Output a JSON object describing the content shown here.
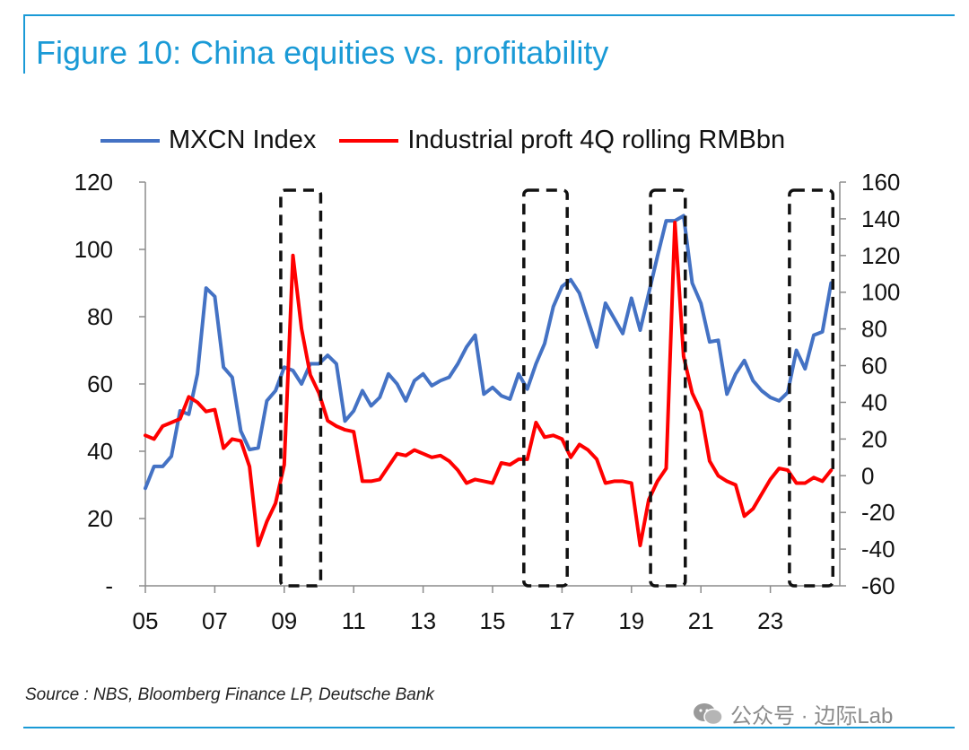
{
  "header": {
    "title": "Figure 10: China equities vs. profitability"
  },
  "legend": [
    {
      "label": "MXCN Index",
      "color": "#4472c4"
    },
    {
      "label": "Industrial proft 4Q rolling RMBbn",
      "color": "#ff0000"
    }
  ],
  "footer": {
    "source": "Source : NBS, Bloomberg Finance LP, Deutsche Bank"
  },
  "watermark": {
    "text": "公众号 · 边际Lab",
    "icon": "wechat-icon"
  },
  "chart_data": {
    "type": "line",
    "title": "Figure 10: China equities vs. profitability",
    "xlabel": "",
    "ylabel_left": "",
    "ylabel_right": "",
    "xlim": [
      2005,
      2025
    ],
    "x_ticks": [
      2005,
      2007,
      2009,
      2011,
      2013,
      2015,
      2017,
      2019,
      2021,
      2023
    ],
    "x_tick_labels": [
      "05",
      "07",
      "09",
      "11",
      "13",
      "15",
      "17",
      "19",
      "21",
      "23"
    ],
    "ylim_left": [
      0,
      120
    ],
    "y_left_ticks": [
      0,
      20,
      40,
      60,
      80,
      100,
      120
    ],
    "y_left_tick_labels": [
      "-",
      "20",
      "40",
      "60",
      "80",
      "100",
      "120"
    ],
    "ylim_right": [
      -60,
      160
    ],
    "y_right_ticks": [
      -60,
      -40,
      -20,
      0,
      20,
      40,
      60,
      80,
      100,
      120,
      140,
      160
    ],
    "y_right_tick_labels": [
      "-60",
      "-40",
      "-20",
      "0",
      "20",
      "40",
      "60",
      "80",
      "100",
      "120",
      "140",
      "160"
    ],
    "grid": false,
    "legend_position": "top",
    "series": [
      {
        "name": "MXCN Index",
        "axis": "left",
        "color": "#4472c4",
        "points": [
          [
            2005.0,
            29
          ],
          [
            2005.25,
            35.5
          ],
          [
            2005.5,
            35.5
          ],
          [
            2005.75,
            38.5
          ],
          [
            2006.0,
            52
          ],
          [
            2006.25,
            51
          ],
          [
            2006.5,
            63
          ],
          [
            2006.75,
            88.5
          ],
          [
            2007.0,
            86
          ],
          [
            2007.25,
            65
          ],
          [
            2007.5,
            62
          ],
          [
            2007.75,
            46
          ],
          [
            2008.0,
            40.5
          ],
          [
            2008.25,
            41
          ],
          [
            2008.5,
            55
          ],
          [
            2008.75,
            58
          ],
          [
            2009.0,
            65
          ],
          [
            2009.25,
            64
          ],
          [
            2009.5,
            60
          ],
          [
            2009.75,
            66
          ],
          [
            2010.0,
            66
          ],
          [
            2010.25,
            68.5
          ],
          [
            2010.5,
            66
          ],
          [
            2010.75,
            49
          ],
          [
            2011.0,
            52
          ],
          [
            2011.25,
            58
          ],
          [
            2011.5,
            53.5
          ],
          [
            2011.75,
            56
          ],
          [
            2012.0,
            63
          ],
          [
            2012.25,
            60
          ],
          [
            2012.5,
            55
          ],
          [
            2012.75,
            61
          ],
          [
            2013.0,
            63
          ],
          [
            2013.25,
            59.5
          ],
          [
            2013.5,
            61
          ],
          [
            2013.75,
            62
          ],
          [
            2014.0,
            66
          ],
          [
            2014.25,
            71
          ],
          [
            2014.5,
            74.5
          ],
          [
            2014.75,
            57
          ],
          [
            2015.0,
            59
          ],
          [
            2015.25,
            56.5
          ],
          [
            2015.5,
            55.5
          ],
          [
            2015.75,
            63
          ],
          [
            2016.0,
            58.5
          ],
          [
            2016.25,
            66
          ],
          [
            2016.5,
            72
          ],
          [
            2016.75,
            83
          ],
          [
            2017.0,
            89
          ],
          [
            2017.25,
            91
          ],
          [
            2017.5,
            87
          ],
          [
            2017.75,
            79
          ],
          [
            2018.0,
            71
          ],
          [
            2018.25,
            84
          ],
          [
            2018.5,
            79.5
          ],
          [
            2018.75,
            75
          ],
          [
            2019.0,
            85.5
          ],
          [
            2019.25,
            76
          ],
          [
            2019.5,
            87
          ],
          [
            2019.75,
            98
          ],
          [
            2020.0,
            108.5
          ],
          [
            2020.25,
            108.5
          ],
          [
            2020.5,
            110
          ],
          [
            2020.75,
            90
          ],
          [
            2021.0,
            84
          ],
          [
            2021.25,
            72.5
          ],
          [
            2021.5,
            73
          ],
          [
            2021.75,
            57
          ],
          [
            2022.0,
            63
          ],
          [
            2022.25,
            67
          ],
          [
            2022.5,
            61
          ],
          [
            2022.75,
            58
          ],
          [
            2023.0,
            56
          ],
          [
            2023.25,
            55
          ],
          [
            2023.5,
            57.5
          ],
          [
            2023.75,
            70
          ],
          [
            2024.0,
            64.5
          ],
          [
            2024.25,
            74.5
          ],
          [
            2024.5,
            75.5
          ],
          [
            2024.75,
            90
          ]
        ]
      },
      {
        "name": "Industrial proft 4Q rolling RMBbn",
        "axis": "right",
        "color": "#ff0000",
        "points": [
          [
            2005.0,
            22
          ],
          [
            2005.25,
            20
          ],
          [
            2005.5,
            27
          ],
          [
            2005.75,
            29
          ],
          [
            2006.0,
            31
          ],
          [
            2006.25,
            43
          ],
          [
            2006.5,
            40
          ],
          [
            2006.75,
            35
          ],
          [
            2007.0,
            36
          ],
          [
            2007.25,
            15
          ],
          [
            2007.5,
            20
          ],
          [
            2007.75,
            19
          ],
          [
            2008.0,
            5
          ],
          [
            2008.25,
            -38
          ],
          [
            2008.5,
            -25
          ],
          [
            2008.75,
            -15
          ],
          [
            2009.0,
            6
          ],
          [
            2009.25,
            120
          ],
          [
            2009.5,
            80
          ],
          [
            2009.75,
            55
          ],
          [
            2010.0,
            45
          ],
          [
            2010.25,
            30
          ],
          [
            2010.5,
            27
          ],
          [
            2010.75,
            25
          ],
          [
            2011.0,
            24
          ],
          [
            2011.25,
            -3
          ],
          [
            2011.5,
            -3
          ],
          [
            2011.75,
            -2
          ],
          [
            2012.0,
            5
          ],
          [
            2012.25,
            12
          ],
          [
            2012.5,
            11
          ],
          [
            2012.75,
            14
          ],
          [
            2013.0,
            12
          ],
          [
            2013.25,
            10
          ],
          [
            2013.5,
            11
          ],
          [
            2013.75,
            8
          ],
          [
            2014.0,
            3
          ],
          [
            2014.25,
            -4
          ],
          [
            2014.5,
            -2
          ],
          [
            2014.75,
            -3
          ],
          [
            2015.0,
            -4
          ],
          [
            2015.25,
            7
          ],
          [
            2015.5,
            6
          ],
          [
            2015.75,
            9
          ],
          [
            2016.0,
            9
          ],
          [
            2016.25,
            29
          ],
          [
            2016.5,
            21
          ],
          [
            2016.75,
            22
          ],
          [
            2017.0,
            20
          ],
          [
            2017.25,
            10
          ],
          [
            2017.5,
            17
          ],
          [
            2017.75,
            14
          ],
          [
            2018.0,
            9
          ],
          [
            2018.25,
            -4
          ],
          [
            2018.5,
            -3
          ],
          [
            2018.75,
            -3
          ],
          [
            2019.0,
            -4
          ],
          [
            2019.25,
            -38
          ],
          [
            2019.5,
            -13
          ],
          [
            2019.75,
            -3
          ],
          [
            2020.0,
            4
          ],
          [
            2020.25,
            138
          ],
          [
            2020.5,
            65
          ],
          [
            2020.75,
            45
          ],
          [
            2021.0,
            35
          ],
          [
            2021.25,
            8
          ],
          [
            2021.5,
            0
          ],
          [
            2021.75,
            -3
          ],
          [
            2022.0,
            -5
          ],
          [
            2022.25,
            -22
          ],
          [
            2022.5,
            -18
          ],
          [
            2022.75,
            -10
          ],
          [
            2023.0,
            -2
          ],
          [
            2023.25,
            4
          ],
          [
            2023.5,
            3
          ],
          [
            2023.75,
            -4
          ],
          [
            2024.0,
            -4
          ],
          [
            2024.25,
            -1
          ],
          [
            2024.5,
            -3
          ],
          [
            2024.75,
            3
          ]
        ]
      }
    ],
    "highlight_periods": [
      [
        2008.9,
        2010.05
      ],
      [
        2015.9,
        2017.15
      ],
      [
        2019.55,
        2020.55
      ],
      [
        2023.55,
        2024.8
      ]
    ]
  }
}
